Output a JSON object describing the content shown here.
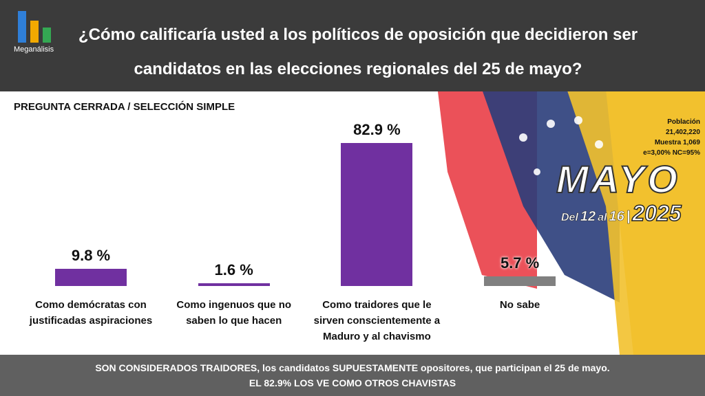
{
  "chart_data": {
    "type": "bar",
    "logo": "Meganálisis",
    "title": "¿Cómo calificaría usted a los políticos de oposición que decidieron ser candidatos en las elecciones regionales del 25 de mayo?",
    "subtitle": "PREGUNTA CERRADA / SELECCIÓN SIMPLE",
    "categories": [
      "Como demócratas con justificadas aspiraciones",
      "Como ingenuos que no saben lo que hacen",
      "Como traidores que le sirven conscientemente a Maduro y al chavismo",
      "No sabe"
    ],
    "values": [
      9.8,
      1.6,
      82.9,
      5.7
    ],
    "value_labels": [
      "9.8 %",
      "1.6 %",
      "82.9 %",
      "5.7 %"
    ],
    "colors": [
      "#7030a0",
      "#7030a0",
      "#7030a0",
      "#808080"
    ],
    "sample": [
      "Población",
      "21,402,220",
      "Muestra 1,069",
      "e=3,00%  NC=95%"
    ],
    "badge": {
      "month": "MAYO",
      "from_word": "Del",
      "from": "12",
      "to_word": "al",
      "to": "16",
      "year": "2025"
    },
    "footer": [
      "SON CONSIDERADOS TRAIDORES, los candidatos SUPUESTAMENTE opositores, que participan el 25 de mayo.",
      "EL 82.9% LOS VE COMO OTROS CHAVISTAS"
    ]
  }
}
